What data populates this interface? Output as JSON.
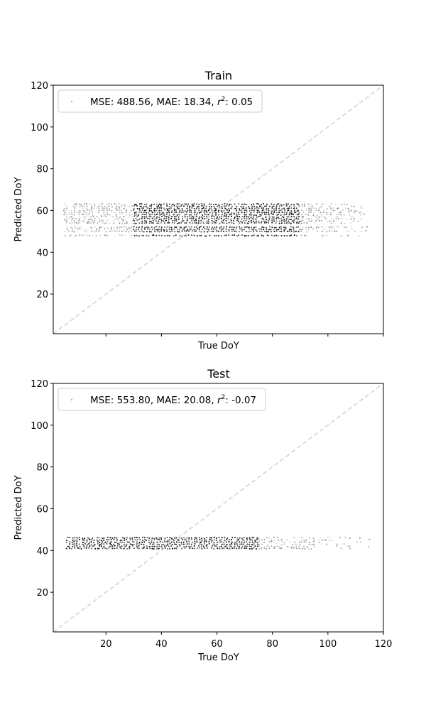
{
  "chart_data": [
    {
      "type": "scatter",
      "title": "Train",
      "xlabel": "True DoY",
      "ylabel": "Predicted DoY",
      "xlim": [
        1,
        120
      ],
      "ylim": [
        1,
        120
      ],
      "yticks": [
        20,
        40,
        60,
        80,
        100,
        120
      ],
      "xticks": [
        20,
        40,
        60,
        80,
        100,
        120
      ],
      "show_xticklabels": false,
      "legend": {
        "placement": "upper-left",
        "mse": "488.56",
        "mae": "18.34",
        "r2": "0.05"
      },
      "reference_line": {
        "x": [
          1,
          120
        ],
        "y": [
          1,
          120
        ],
        "style": "dashed",
        "color": "#d3d3d3"
      },
      "point_color": "#000000",
      "point_cloud": {
        "x_range": [
          5,
          115
        ],
        "dense_x_range": [
          30,
          90
        ],
        "y_levels": [
          48,
          50,
          51,
          52,
          54,
          55,
          56,
          57,
          58,
          59,
          60,
          61,
          62,
          63
        ],
        "y_range": [
          47,
          64
        ]
      }
    },
    {
      "type": "scatter",
      "title": "Test",
      "xlabel": "True DoY",
      "ylabel": "Predicted DoY",
      "xlim": [
        1,
        120
      ],
      "ylim": [
        1,
        120
      ],
      "yticks": [
        20,
        40,
        60,
        80,
        100,
        120
      ],
      "xticks": [
        20,
        40,
        60,
        80,
        100,
        120
      ],
      "show_xticklabels": true,
      "legend": {
        "placement": "upper-left",
        "mse": "553.80",
        "mae": "20.08",
        "r2": "-0.07"
      },
      "reference_line": {
        "x": [
          1,
          120
        ],
        "y": [
          1,
          120
        ],
        "style": "dashed",
        "color": "#d3d3d3"
      },
      "point_color": "#000000",
      "point_cloud": {
        "x_range": [
          6,
          115
        ],
        "dense_x_range": [
          6,
          75
        ],
        "y_levels": [
          41,
          42,
          43,
          44,
          45,
          46
        ],
        "y_range": [
          41,
          46
        ]
      }
    }
  ]
}
